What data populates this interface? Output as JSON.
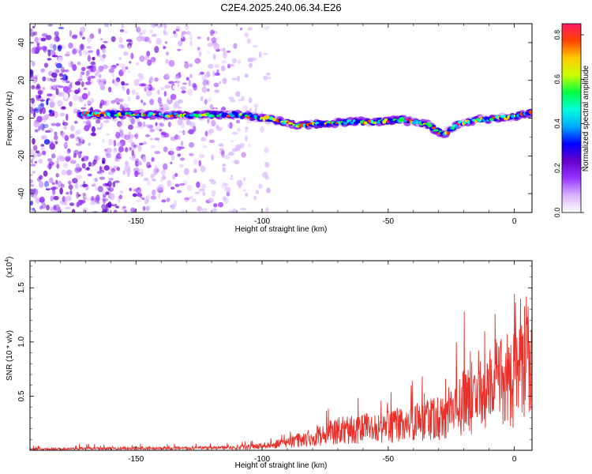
{
  "title": "C2E4.2025.240.06.34.E26",
  "colors": {
    "axis": "#000000",
    "snr_line": "#e8312a",
    "background": "#ffffff",
    "colormap": [
      "#ffffff",
      "#d9b3ff",
      "#9933ff",
      "#6600cc",
      "#0000ff",
      "#00aaff",
      "#00ffdd",
      "#00ff44",
      "#ccff00",
      "#ffcc00",
      "#ff4400",
      "#ff1a66"
    ]
  },
  "chart_data": [
    {
      "type": "heatmap",
      "name": "spectrogram",
      "xlabel": "Height of straight line (km)",
      "ylabel": "Frequency (Hz)",
      "xlim": [
        -192,
        7
      ],
      "ylim": [
        -50,
        50
      ],
      "xticks": [
        -150,
        -100,
        -50,
        0
      ],
      "xtick_labels": [
        "-150",
        "-100",
        "-50",
        "0"
      ],
      "yticks": [
        -40,
        -20,
        0,
        20,
        40
      ],
      "ytick_labels": [
        "-40",
        "-20",
        "0",
        "20",
        "40"
      ],
      "signal_band": {
        "description": "strong narrow band around 0 Hz",
        "x": [
          -172,
          -150,
          -130,
          -110,
          -95,
          -85,
          -75,
          -65,
          -55,
          -45,
          -35,
          -28,
          -22,
          -15,
          -5,
          0,
          7
        ],
        "freq_hz": [
          2,
          2,
          1.5,
          2,
          -1,
          -4,
          -3,
          -2,
          -2,
          -1,
          -3,
          -9,
          -3,
          -1,
          0,
          1,
          3
        ],
        "peak_amplitude": 0.85
      },
      "colorbar": {
        "label": "Normalized spectral amplitude",
        "range": [
          0,
          0.85
        ],
        "ticks": [
          0,
          0.2,
          0.4,
          0.6,
          0.8
        ],
        "tick_labels": [
          "0.0",
          "0.2",
          "0.4",
          "0.6",
          "0.8"
        ]
      }
    },
    {
      "type": "line",
      "name": "snr",
      "xlabel": "Height of straight line (km)",
      "ylabel": "SNR (10 * v/v)",
      "y_multiplier_label": "(x10",
      "y_multiplier_exponent": "4",
      "y_multiplier_close": ")",
      "xlim": [
        -192,
        7
      ],
      "ylim": [
        0,
        1.75
      ],
      "xticks": [
        -150,
        -100,
        -50,
        0
      ],
      "xtick_labels": [
        "-150",
        "-100",
        "-50",
        "0"
      ],
      "yticks": [
        0.5,
        1.0,
        1.5
      ],
      "ytick_labels": [
        "0.5",
        "1.0",
        "1.5"
      ],
      "envelope": {
        "x": [
          -192,
          -170,
          -150,
          -130,
          -110,
          -100,
          -90,
          -80,
          -70,
          -60,
          -50,
          -40,
          -30,
          -20,
          -10,
          0,
          7
        ],
        "mean": [
          0.01,
          0.015,
          0.02,
          0.02,
          0.025,
          0.04,
          0.07,
          0.12,
          0.18,
          0.2,
          0.22,
          0.25,
          0.3,
          0.45,
          0.55,
          0.7,
          0.9
        ],
        "max": [
          0.04,
          0.07,
          0.06,
          0.07,
          0.08,
          0.12,
          0.18,
          0.23,
          0.5,
          0.48,
          0.55,
          0.7,
          0.75,
          1.35,
          1.36,
          1.45,
          1.75
        ]
      }
    }
  ]
}
